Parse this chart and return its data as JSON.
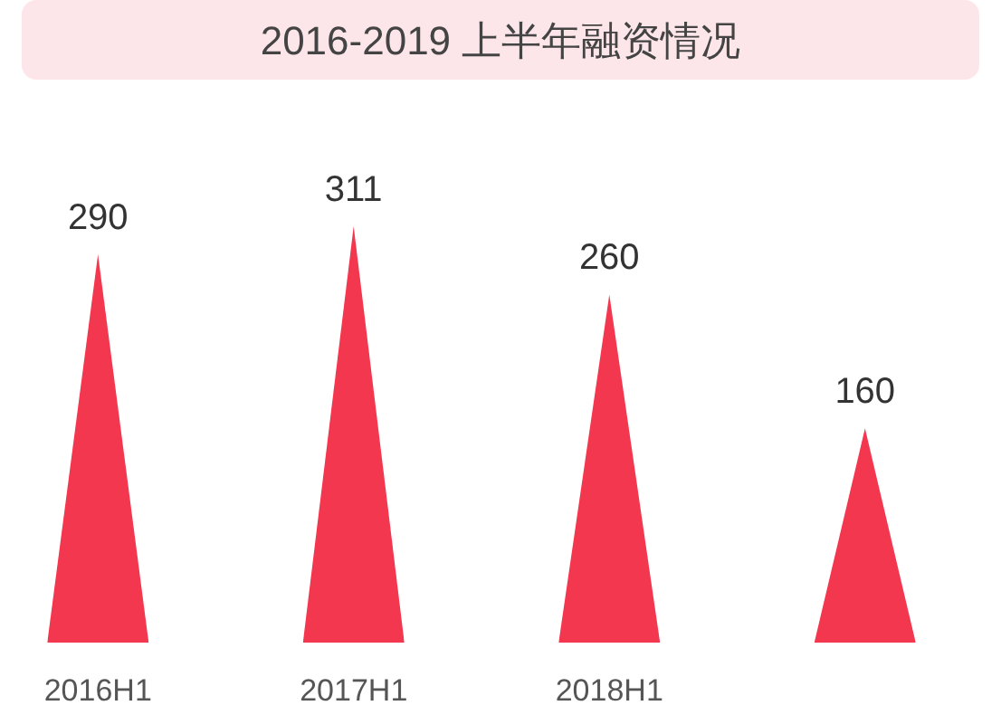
{
  "chart_data": {
    "type": "bar",
    "title": "2016-2019 上半年融资情况",
    "categories": [
      "2016H1",
      "2017H1",
      "2018H1",
      null
    ],
    "values": [
      290,
      311,
      260,
      160
    ],
    "color": "#f2374f",
    "data_labels": true
  }
}
